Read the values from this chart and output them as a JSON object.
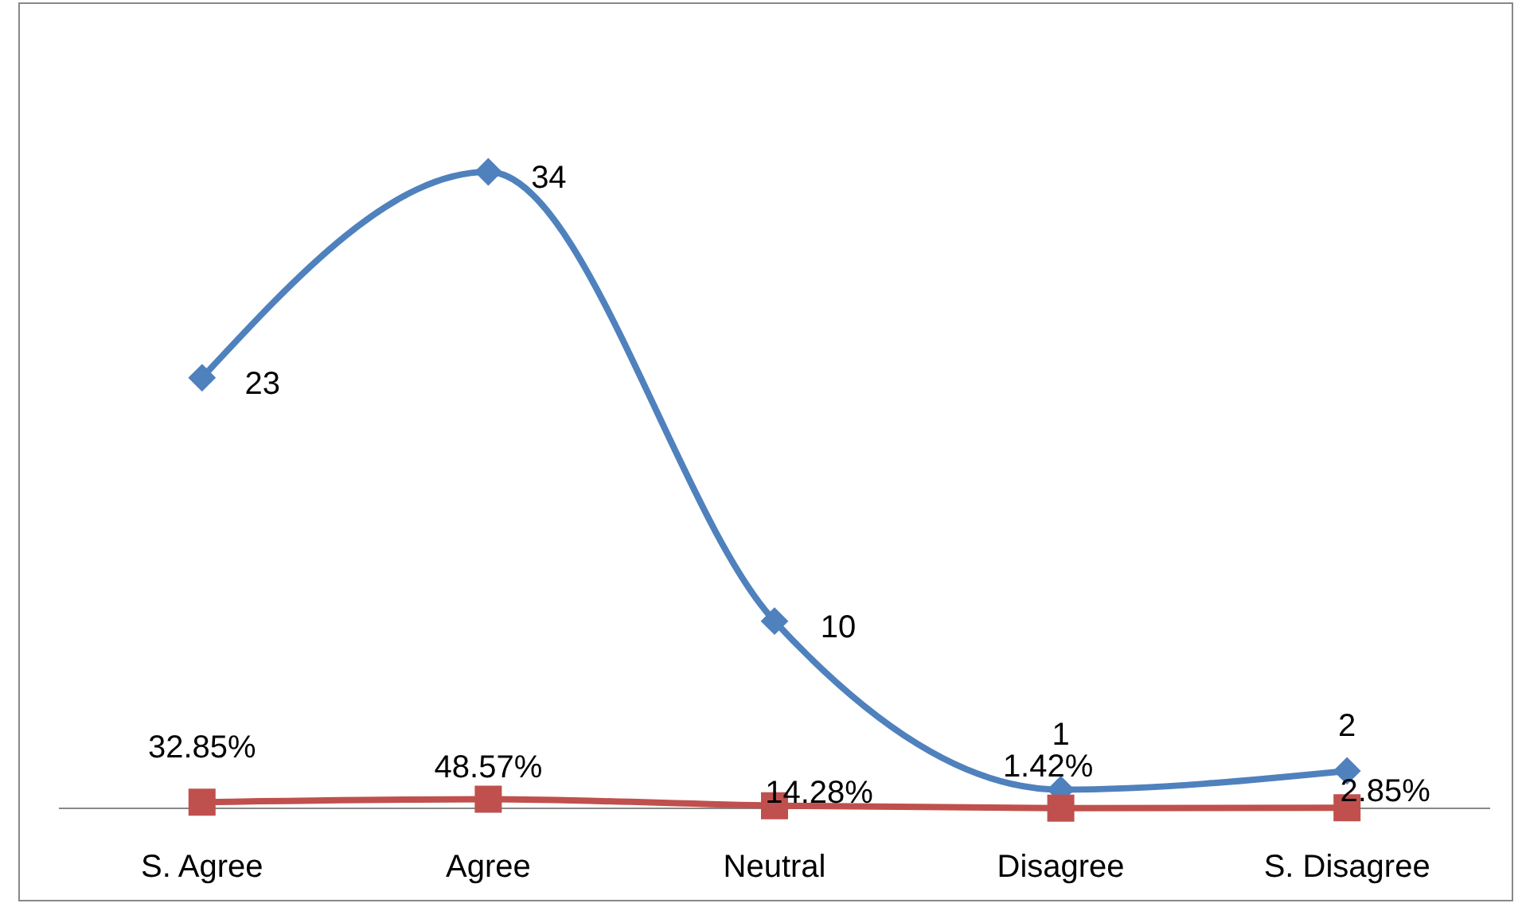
{
  "chart_data": {
    "type": "line",
    "categories": [
      "S. Agree",
      "Agree",
      "Neutral",
      "Disagree",
      "S. Disagree"
    ],
    "series": [
      {
        "color": "#4f81bd",
        "marker": "diamond",
        "values": [
          23,
          34,
          10,
          1,
          2
        ],
        "value_labels": [
          "23",
          "34",
          "10",
          "1",
          "2"
        ]
      },
      {
        "color": "#c0504d",
        "marker": "square",
        "values": [
          0.3285,
          0.4857,
          0.1428,
          0.0142,
          0.0285
        ],
        "value_labels": [
          "32.85%",
          "48.57%",
          "14.28%",
          "1.42%",
          "2.85%"
        ]
      }
    ]
  }
}
